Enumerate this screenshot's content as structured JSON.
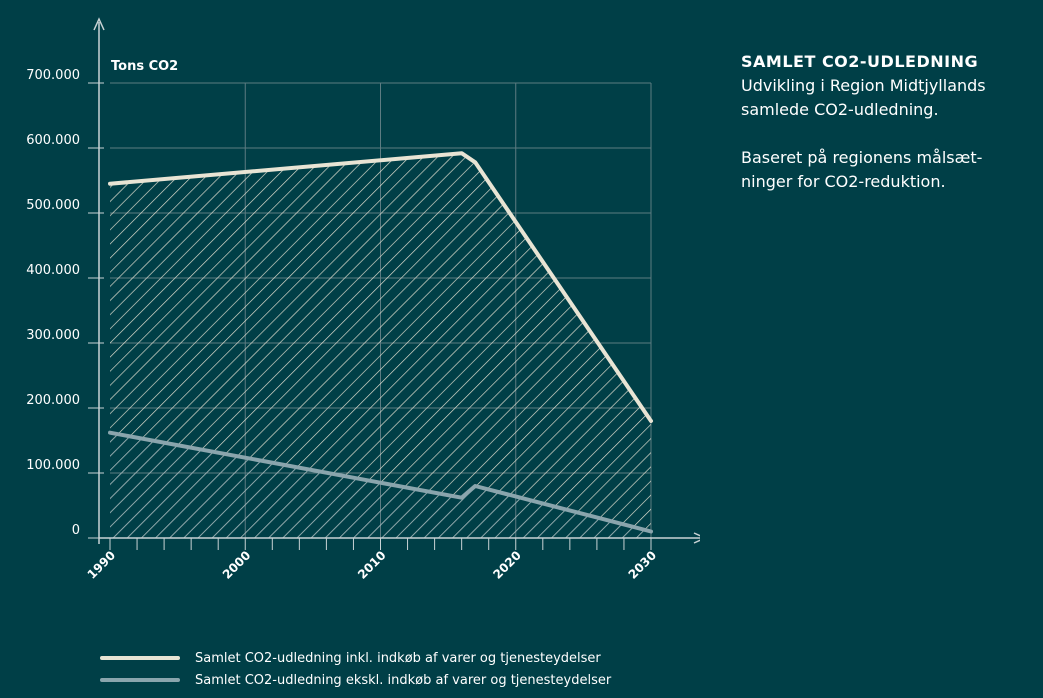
{
  "chart_data": {
    "type": "area",
    "ylabel": "Tons CO2",
    "ylim": [
      0,
      700000
    ],
    "xlim": [
      1990,
      2030
    ],
    "yticks": [
      0,
      100000,
      200000,
      300000,
      400000,
      500000,
      600000,
      700000
    ],
    "ytick_labels": [
      "0",
      "100.000",
      "200.000",
      "300.000",
      "400.000",
      "500.000",
      "600.000",
      "700.000"
    ],
    "xticks": [
      1990,
      2000,
      2010,
      2020,
      2030
    ],
    "xtick_labels": [
      "1990",
      "2000",
      "2010",
      "2020",
      "2030"
    ],
    "grid": true,
    "series": [
      {
        "name": "Samlet CO2-udledning inkl. indkøb af varer og tjenesteydelser",
        "color": "#e8e4d4",
        "fill": "hatched",
        "points": [
          {
            "x": 1990,
            "y": 545000
          },
          {
            "x": 2016,
            "y": 592000
          },
          {
            "x": 2017,
            "y": 578000
          },
          {
            "x": 2030,
            "y": 180000
          }
        ]
      },
      {
        "name": "Samlet CO2-udledning ekskl. indkøb af varer og tjenesteydelser",
        "color": "#8aa5ad",
        "fill": "hatched",
        "points": [
          {
            "x": 1990,
            "y": 162000
          },
          {
            "x": 2016,
            "y": 62000
          },
          {
            "x": 2017,
            "y": 80000
          },
          {
            "x": 2030,
            "y": 10000
          }
        ]
      }
    ]
  },
  "side": {
    "heading": "SAMLET CO2-UDLEDNING",
    "line1": "Udvikling i Region Midtjyllands",
    "line2": "samlede CO2-udledning.",
    "line3": "Baseret på regionens målsæt-",
    "line4": "ninger for CO2-reduktion."
  },
  "legend": [
    {
      "label": "Samlet CO2-udledning inkl. indkøb af varer og tjenesteydelser",
      "color": "#e8e4d4"
    },
    {
      "label": "Samlet CO2-udledning ekskl. indkøb af varer og tjenesteydelser",
      "color": "#8aa5ad"
    }
  ],
  "colors": {
    "background": "#003f47",
    "grid": "#5d7c82",
    "axis": "#c9d3d5",
    "text": "#ffffff"
  }
}
